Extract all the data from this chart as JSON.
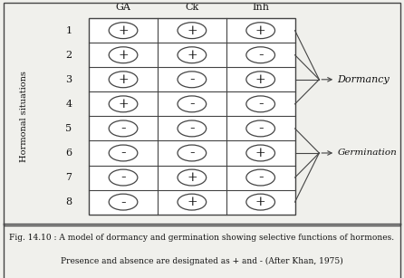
{
  "title_line1": "Fig. 14.10 : A model of dormancy and germination showing selective functions of hormones.",
  "title_line2": "Presence and absence are designated as + and - (After Khan, 1975)",
  "col_headers": [
    "GA",
    "Ck",
    "Inh"
  ],
  "row_labels": [
    "1",
    "2",
    "3",
    "4",
    "5",
    "6",
    "7",
    "8"
  ],
  "table_data": [
    [
      "+",
      "+",
      "+"
    ],
    [
      "+",
      "+",
      "-"
    ],
    [
      "+",
      "-",
      "+"
    ],
    [
      "+",
      "-",
      "-"
    ],
    [
      "-",
      "-",
      "-"
    ],
    [
      "-",
      "-",
      "+"
    ],
    [
      "-",
      "+",
      "-"
    ],
    [
      "-",
      "+",
      "+"
    ]
  ],
  "dormancy_rows": [
    0,
    1,
    2,
    3
  ],
  "germination_rows": [
    4,
    5,
    6,
    7
  ],
  "dormancy_label": "Dormancy",
  "germination_label": "Germination",
  "ylabel": "Hormonal situations",
  "bg_color": "#ffffff",
  "fig_bg_color": "#f0f0ec",
  "border_color": "#444444",
  "text_color": "#111111",
  "dormancy_arrow_target_row": 2,
  "germination_arrow_target_row": 5
}
